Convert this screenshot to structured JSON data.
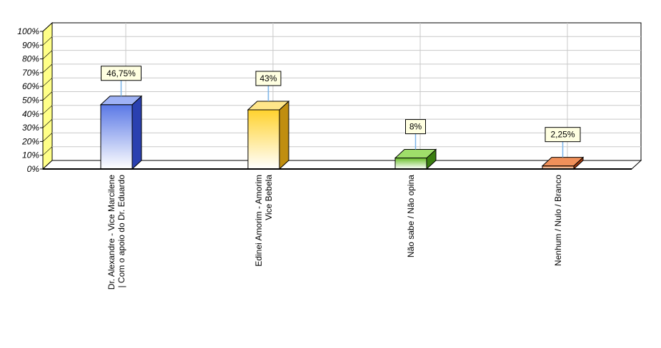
{
  "chart_data": {
    "type": "bar",
    "categories": [
      [
        "Dr. Alexandre - Vice Marcilene",
        "| Com o apoio do Dr. Eduardo"
      ],
      [
        "Edinei Amorim - Amorim",
        "Vice Bebela"
      ],
      [
        "Não sabe / Não opina"
      ],
      [
        "Nenhum / Nulo / Branco"
      ]
    ],
    "values": [
      46.75,
      43,
      8,
      2.25
    ],
    "data_labels": [
      "46,75%",
      "43%",
      "8%",
      "2,25%"
    ],
    "y_ticks": [
      "0%",
      "10%",
      "20%",
      "30%",
      "40%",
      "50%",
      "60%",
      "70%",
      "80%",
      "90%",
      "100%"
    ],
    "ylim": [
      0,
      100
    ],
    "grid": true,
    "legend": "none",
    "title": "",
    "xlabel": "",
    "ylabel": "",
    "colors": {
      "bar_fronts": [
        "#5a78e6",
        "#ffd22e",
        "#6abf2a",
        "#e0681e"
      ],
      "bar_sides": [
        "#2a40b0",
        "#c08e10",
        "#3a7e10",
        "#a63a0c"
      ],
      "bar_tops": [
        "#9fb2f5",
        "#ffe68a",
        "#9fde6a",
        "#f0905a"
      ],
      "left_wall": "#ffff88",
      "grid": "#c8c8c8",
      "label_box": "#ffffe1",
      "leader_line": "#7ab4e8"
    }
  }
}
